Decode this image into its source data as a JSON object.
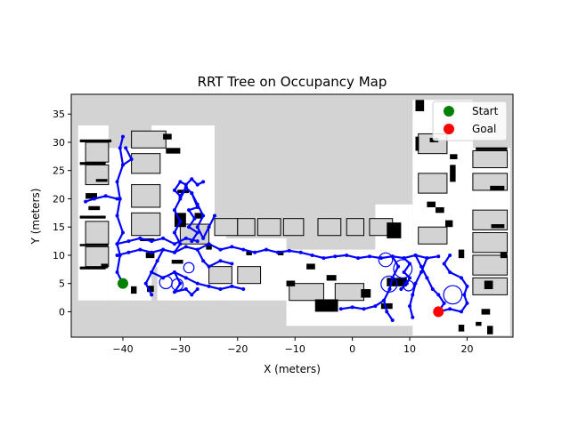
{
  "chart_data": {
    "type": "scatter",
    "title": "RRT Tree on Occupancy Map",
    "xlabel": "X (meters)",
    "ylabel": "Y (meters)",
    "xlim": [
      -49,
      28
    ],
    "ylim": [
      -4.5,
      38.5
    ],
    "xticks": [
      -40,
      -30,
      -20,
      -10,
      0,
      10,
      20
    ],
    "yticks": [
      0,
      5,
      10,
      15,
      20,
      25,
      30,
      35
    ],
    "grid": false,
    "legend_position": "top-right",
    "legend": [
      {
        "label": "Start",
        "color": "#008000"
      },
      {
        "label": "Goal",
        "color": "#ff0000"
      }
    ],
    "start": {
      "x": -40,
      "y": 5
    },
    "goal": {
      "x": 15,
      "y": 0
    },
    "tree_color": "#0000ff",
    "unknown_color": "#d3d3d3",
    "free_color": "#ffffff",
    "occupied_color": "#000000",
    "free_space": [
      [
        -47.8,
        2,
        -42.5,
        33
      ],
      [
        -42.5,
        2,
        -35,
        29
      ],
      [
        -35,
        8,
        -24,
        33
      ],
      [
        -34,
        2,
        -24,
        8
      ],
      [
        -24,
        2,
        -22,
        16.5
      ],
      [
        -22,
        2,
        -11.5,
        13
      ],
      [
        -11.5,
        -2.5,
        4,
        11
      ],
      [
        4,
        -2.5,
        10.5,
        19
      ],
      [
        10.5,
        -4.2,
        21,
        37.5
      ],
      [
        21,
        -4.2,
        27.5,
        29
      ]
    ],
    "unknown_blocks": [
      [
        -46.5,
        26.5,
        -42.5,
        30
      ],
      [
        -46.5,
        22.5,
        -42.5,
        26
      ],
      [
        -46.5,
        12,
        -42.5,
        16
      ],
      [
        -46.5,
        8,
        -42.5,
        11.5
      ],
      [
        -38.5,
        29,
        -32.5,
        32
      ],
      [
        -38.5,
        24.5,
        -33.5,
        28
      ],
      [
        -38.5,
        18.5,
        -33.5,
        22.5
      ],
      [
        -38.5,
        13.5,
        -33.5,
        17.5
      ],
      [
        -30,
        12,
        -25,
        15.5
      ],
      [
        -24,
        13.5,
        -20,
        16.5
      ],
      [
        -20,
        13.5,
        -17,
        16.5
      ],
      [
        -16.5,
        13.5,
        -12.5,
        16.5
      ],
      [
        -12,
        13.5,
        -8.5,
        16.5
      ],
      [
        -6,
        13.5,
        -2,
        16.5
      ],
      [
        -1,
        13.5,
        2,
        16.5
      ],
      [
        3,
        13.5,
        7,
        16.5
      ],
      [
        11.5,
        28,
        16.5,
        31.5
      ],
      [
        11.5,
        21,
        16.5,
        24.5
      ],
      [
        11.5,
        12,
        16.5,
        15
      ],
      [
        21,
        25.5,
        27,
        28.5
      ],
      [
        21,
        21.5,
        27,
        24.5
      ],
      [
        21,
        14.5,
        27,
        18
      ],
      [
        21,
        10.5,
        27,
        14
      ],
      [
        21,
        6.5,
        27,
        10
      ],
      [
        21,
        3,
        27,
        6
      ],
      [
        -25,
        5,
        -21,
        8
      ],
      [
        -20,
        5,
        -16,
        8
      ],
      [
        -11,
        2,
        -5,
        5
      ],
      [
        -3,
        2,
        2,
        5
      ]
    ],
    "obstacles": [
      [
        -47.5,
        30,
        -42,
        30.5
      ],
      [
        -47.5,
        26,
        -43,
        26.5
      ],
      [
        -46.5,
        20,
        -44.5,
        21
      ],
      [
        -47.5,
        16.5,
        -43,
        17
      ],
      [
        -47.5,
        11.6,
        -42.5,
        12
      ],
      [
        -47.5,
        7.5,
        -43,
        8
      ],
      [
        -46,
        18,
        -44,
        18.7
      ],
      [
        -44.7,
        23,
        -42.7,
        23.5
      ],
      [
        -33,
        30.5,
        -31.5,
        31.5
      ],
      [
        -32.5,
        28,
        -30,
        29
      ],
      [
        -30.5,
        21,
        -28.5,
        21.6
      ],
      [
        -31,
        15,
        -29,
        17.5
      ],
      [
        -27.5,
        16.5,
        -26,
        17.5
      ],
      [
        -37,
        12.5,
        -34.5,
        13
      ],
      [
        -31.5,
        8.5,
        -29.5,
        9.2
      ],
      [
        -36,
        9.5,
        -34.5,
        10.5
      ],
      [
        -25.5,
        11,
        -24.5,
        12
      ],
      [
        -18.5,
        10,
        -17.5,
        10.8
      ],
      [
        -13,
        10,
        -12,
        10.8
      ],
      [
        -8,
        7.5,
        -6.5,
        8.5
      ],
      [
        -11.5,
        4.5,
        -10,
        5.5
      ],
      [
        -6.5,
        0,
        -2.5,
        2.2
      ],
      [
        -4.5,
        5.5,
        -2.8,
        6.5
      ],
      [
        1.5,
        2.5,
        3.2,
        4
      ],
      [
        6,
        13,
        8.5,
        15.8
      ],
      [
        6,
        4.5,
        9.5,
        6
      ],
      [
        5,
        0.5,
        7,
        1.5
      ],
      [
        11,
        35.5,
        12.5,
        37.5
      ],
      [
        11,
        28.5,
        11.6,
        31
      ],
      [
        13.5,
        30,
        15,
        30.8
      ],
      [
        17,
        27,
        18.3,
        27.9
      ],
      [
        17,
        23,
        18,
        26
      ],
      [
        14.5,
        17.5,
        16,
        18.5
      ],
      [
        13,
        18.5,
        14.5,
        19.5
      ],
      [
        16.2,
        15,
        17.5,
        16.2
      ],
      [
        18.5,
        9.5,
        19.5,
        11
      ],
      [
        21.5,
        28.6,
        27,
        29.1
      ],
      [
        24,
        21.5,
        26.5,
        22.3
      ],
      [
        24.2,
        14.8,
        26.5,
        15.5
      ],
      [
        25.8,
        9.5,
        27,
        10.6
      ],
      [
        23,
        4,
        24.5,
        5.5
      ],
      [
        22.5,
        -0.5,
        24,
        0.5
      ],
      [
        23.5,
        -4,
        24.5,
        -2.5
      ],
      [
        21.5,
        -2.5,
        22.5,
        -1.8
      ],
      [
        18.5,
        -3.5,
        19.5,
        -2.3
      ],
      [
        -43.8,
        7.7,
        -42.6,
        8.5
      ],
      [
        -38.6,
        3.2,
        -37.6,
        4.5
      ],
      [
        -35.8,
        3.5,
        -34.6,
        4.6
      ]
    ],
    "tree_paths": [
      [
        [
          -40,
          5
        ],
        [
          -41,
          7
        ],
        [
          -40.5,
          10
        ],
        [
          -41,
          12
        ],
        [
          -40,
          14
        ],
        [
          -41,
          17
        ],
        [
          -40.5,
          20
        ],
        [
          -41,
          23
        ],
        [
          -40,
          26
        ],
        [
          -40.5,
          29
        ],
        [
          -40,
          31
        ]
      ],
      [
        [
          -40,
          26
        ],
        [
          -38.5,
          27
        ],
        [
          -39.5,
          29
        ]
      ],
      [
        [
          -41,
          20
        ],
        [
          -43,
          20.5
        ],
        [
          -45,
          20
        ],
        [
          -46.5,
          19.5
        ]
      ],
      [
        [
          -41,
          10
        ],
        [
          -39,
          10.5
        ],
        [
          -37,
          11
        ],
        [
          -35,
          10.5
        ],
        [
          -33,
          11
        ],
        [
          -31,
          10.5
        ],
        [
          -29,
          11.5
        ],
        [
          -27,
          11
        ],
        [
          -25,
          12
        ],
        [
          -23,
          11
        ],
        [
          -21,
          11.5
        ],
        [
          -19,
          11
        ],
        [
          -17,
          10.5
        ],
        [
          -15,
          11
        ],
        [
          -13,
          10.5
        ],
        [
          -11,
          10.8
        ],
        [
          -9,
          10.5
        ],
        [
          -7,
          10
        ],
        [
          -5,
          9.5
        ],
        [
          -3,
          9.8
        ],
        [
          -1,
          10
        ],
        [
          1,
          9.5
        ],
        [
          3,
          9.8
        ],
        [
          5,
          9.5
        ],
        [
          7,
          9.8
        ],
        [
          9,
          9.5
        ],
        [
          11,
          10
        ],
        [
          13,
          9.5
        ],
        [
          15,
          9.8
        ]
      ],
      [
        [
          -41,
          12
        ],
        [
          -39,
          12.5
        ],
        [
          -37,
          13
        ],
        [
          -35,
          12.5
        ],
        [
          -33,
          13
        ],
        [
          -31,
          12
        ],
        [
          -29,
          13
        ],
        [
          -27,
          12.5
        ]
      ],
      [
        [
          -31,
          10.5
        ],
        [
          -30,
          12
        ],
        [
          -31,
          14
        ],
        [
          -30,
          16
        ],
        [
          -31,
          18
        ],
        [
          -30,
          20
        ],
        [
          -29,
          22
        ],
        [
          -28,
          21
        ],
        [
          -27,
          19
        ],
        [
          -26,
          17
        ],
        [
          -27,
          15
        ],
        [
          -26,
          13
        ],
        [
          -25,
          15
        ],
        [
          -24,
          17
        ]
      ],
      [
        [
          -29,
          22
        ],
        [
          -30,
          20.5
        ],
        [
          -31,
          21.5
        ],
        [
          -30,
          23
        ],
        [
          -29,
          22.5
        ],
        [
          -28,
          23.5
        ],
        [
          -27,
          22.5
        ],
        [
          -26,
          23
        ]
      ],
      [
        [
          -28,
          21
        ],
        [
          -27,
          18.5
        ],
        [
          -28.5,
          18
        ],
        [
          -27.5,
          16.5
        ],
        [
          -28.5,
          15
        ],
        [
          -27,
          14
        ],
        [
          -28,
          12.5
        ]
      ],
      [
        [
          -33,
          11
        ],
        [
          -34,
          9
        ],
        [
          -35,
          7
        ],
        [
          -36,
          5
        ],
        [
          -35,
          3
        ]
      ],
      [
        [
          -35,
          7
        ],
        [
          -33,
          6
        ],
        [
          -31,
          7
        ],
        [
          -29,
          6
        ],
        [
          -27,
          5
        ],
        [
          -25,
          4.5
        ],
        [
          -23,
          4
        ],
        [
          -21,
          4.5
        ],
        [
          -19,
          4
        ]
      ],
      [
        [
          -31,
          7
        ],
        [
          -30,
          5
        ],
        [
          -31,
          3.5
        ],
        [
          -29,
          4
        ],
        [
          -28,
          3
        ],
        [
          -27,
          4
        ]
      ],
      [
        [
          -27,
          11
        ],
        [
          -26,
          9
        ],
        [
          -25,
          8
        ],
        [
          -23,
          9
        ],
        [
          -21,
          8.5
        ]
      ],
      [
        [
          7,
          9.8
        ],
        [
          8,
          8
        ],
        [
          7,
          6
        ],
        [
          6.5,
          4
        ],
        [
          5.5,
          2
        ],
        [
          4,
          1
        ],
        [
          2,
          0.5
        ],
        [
          0,
          0.8
        ],
        [
          -2,
          0.5
        ]
      ],
      [
        [
          5.5,
          2
        ],
        [
          6,
          0
        ],
        [
          7,
          -1.5
        ]
      ],
      [
        [
          11,
          10
        ],
        [
          12,
          8
        ],
        [
          13,
          6
        ],
        [
          14,
          4
        ],
        [
          15,
          3
        ],
        [
          16,
          1.5
        ],
        [
          15,
          0
        ]
      ],
      [
        [
          15,
          0
        ],
        [
          17,
          0.5
        ],
        [
          19,
          0
        ],
        [
          20,
          1.5
        ],
        [
          19.5,
          3
        ],
        [
          20,
          4.5
        ],
        [
          19,
          6
        ],
        [
          17,
          7
        ],
        [
          16,
          8.5
        ],
        [
          17,
          10
        ]
      ],
      [
        [
          13,
          9.5
        ],
        [
          12,
          7
        ],
        [
          11,
          5
        ],
        [
          10.5,
          3
        ],
        [
          10,
          1
        ],
        [
          10.5,
          -1
        ]
      ],
      [
        [
          9,
          9.5
        ],
        [
          10,
          8.5
        ],
        [
          9,
          7
        ],
        [
          10,
          6
        ],
        [
          9.5,
          5
        ],
        [
          8.5,
          4
        ]
      ]
    ],
    "tree_circles": [
      [
        5.8,
        9.2,
        1.2
      ],
      [
        8.8,
        7.6,
        1.6
      ],
      [
        6.4,
        4.9,
        1.4
      ],
      [
        17.5,
        3,
        1.6
      ],
      [
        9.8,
        4.6,
        0.9
      ],
      [
        -30.5,
        4.8,
        1
      ],
      [
        -32.5,
        5.2,
        1.1
      ],
      [
        -28.5,
        7.8,
        0.9
      ]
    ]
  }
}
